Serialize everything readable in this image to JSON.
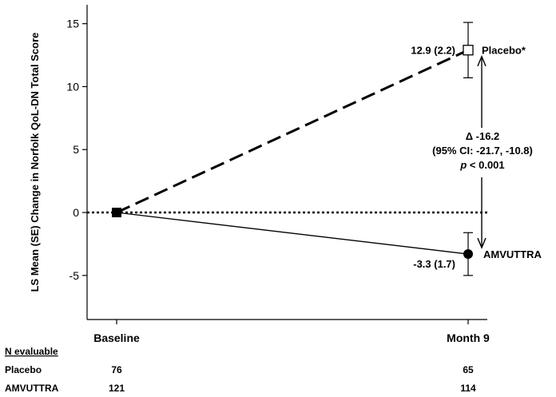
{
  "chart_data": {
    "type": "line",
    "ylabel": "LS Mean (SE) Change in Norfolk QoL-DN Total Score",
    "categories": [
      "Baseline",
      "Month 9"
    ],
    "ylim": [
      -8.5,
      16.5
    ],
    "yticks": [
      -5,
      0,
      5,
      10,
      15
    ],
    "ytick_labels": [
      "-5",
      "0",
      "5",
      "10",
      "15"
    ],
    "reference_line": 0,
    "series": [
      {
        "name": "Placebo*",
        "values": [
          0,
          12.9
        ],
        "se_ci": [
          null,
          [
            10.7,
            15.1
          ]
        ],
        "point_label": "12.9 (2.2)",
        "marker": "open-square",
        "line": "dashed"
      },
      {
        "name": "AMVUTTRA",
        "values": [
          0,
          -3.3
        ],
        "se_ci": [
          null,
          [
            -5.0,
            -1.6
          ]
        ],
        "point_label": "-3.3 (1.7)",
        "marker": "filled-circle",
        "line": "solid"
      }
    ],
    "annotation": {
      "delta": "Δ -16.2",
      "ci": "(95% CI: -21.7, -10.8)",
      "p_italic": "p",
      "p_rest": " < 0.001"
    },
    "table": {
      "header": "N evaluable",
      "rows": [
        {
          "label": "Placebo",
          "values": [
            "76",
            "65"
          ]
        },
        {
          "label": "AMVUTTRA",
          "values": [
            "121",
            "114"
          ]
        }
      ]
    }
  }
}
